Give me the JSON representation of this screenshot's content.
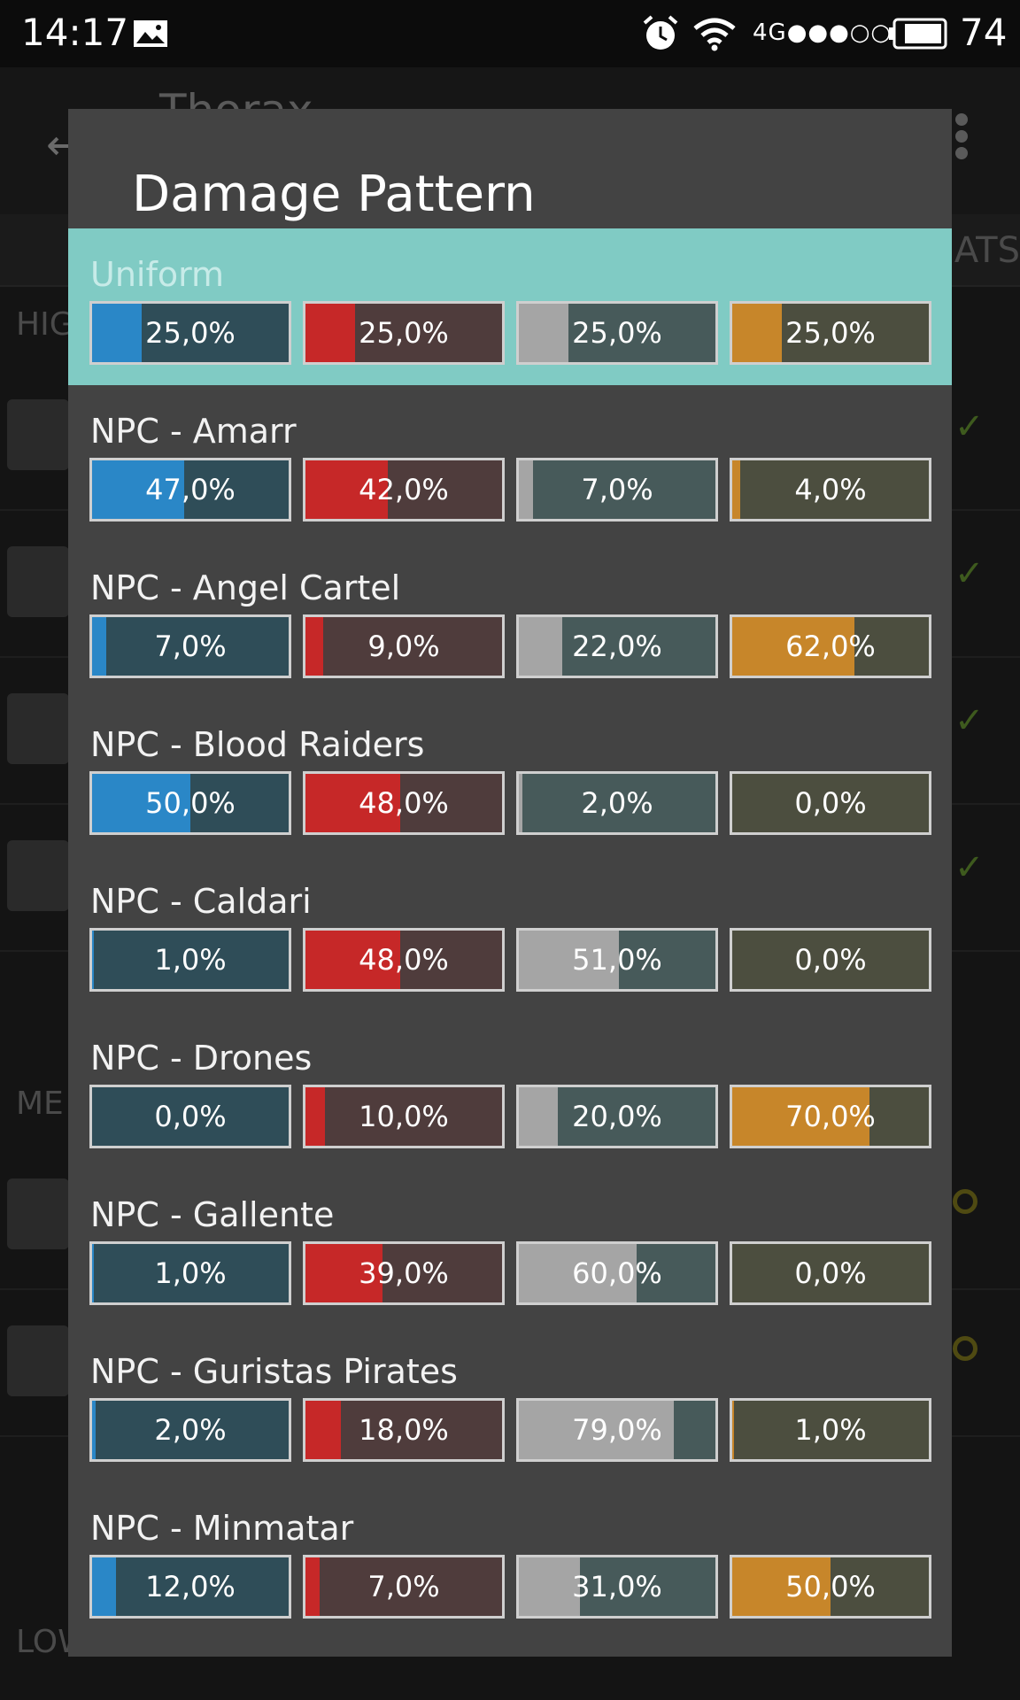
{
  "status_bar": {
    "time": "14:17",
    "network": "4G●●●○○",
    "battery": "74",
    "icons": [
      "image-icon",
      "alarm-icon",
      "wifi-icon",
      "battery-icon"
    ]
  },
  "background": {
    "title": "Thorax",
    "tab_label": "ATS",
    "sections": [
      "HIG",
      "ME",
      "LOW"
    ]
  },
  "dialog": {
    "title": "Damage Pattern",
    "patterns": [
      {
        "name": "Uniform",
        "selected": true,
        "em": {
          "pct": 25.0,
          "label": "25,0%"
        },
        "thermal": {
          "pct": 25.0,
          "label": "25,0%"
        },
        "kinetic": {
          "pct": 25.0,
          "label": "25,0%"
        },
        "explosive": {
          "pct": 25.0,
          "label": "25,0%"
        }
      },
      {
        "name": "NPC - Amarr",
        "selected": false,
        "em": {
          "pct": 47.0,
          "label": "47,0%"
        },
        "thermal": {
          "pct": 42.0,
          "label": "42,0%"
        },
        "kinetic": {
          "pct": 7.0,
          "label": "7,0%"
        },
        "explosive": {
          "pct": 4.0,
          "label": "4,0%"
        }
      },
      {
        "name": "NPC - Angel Cartel",
        "selected": false,
        "em": {
          "pct": 7.0,
          "label": "7,0%"
        },
        "thermal": {
          "pct": 9.0,
          "label": "9,0%"
        },
        "kinetic": {
          "pct": 22.0,
          "label": "22,0%"
        },
        "explosive": {
          "pct": 62.0,
          "label": "62,0%"
        }
      },
      {
        "name": "NPC - Blood Raiders",
        "selected": false,
        "em": {
          "pct": 50.0,
          "label": "50,0%"
        },
        "thermal": {
          "pct": 48.0,
          "label": "48,0%"
        },
        "kinetic": {
          "pct": 2.0,
          "label": "2,0%"
        },
        "explosive": {
          "pct": 0.0,
          "label": "0,0%"
        }
      },
      {
        "name": "NPC - Caldari",
        "selected": false,
        "em": {
          "pct": 1.0,
          "label": "1,0%"
        },
        "thermal": {
          "pct": 48.0,
          "label": "48,0%"
        },
        "kinetic": {
          "pct": 51.0,
          "label": "51,0%"
        },
        "explosive": {
          "pct": 0.0,
          "label": "0,0%"
        }
      },
      {
        "name": "NPC - Drones",
        "selected": false,
        "em": {
          "pct": 0.0,
          "label": "0,0%"
        },
        "thermal": {
          "pct": 10.0,
          "label": "10,0%"
        },
        "kinetic": {
          "pct": 20.0,
          "label": "20,0%"
        },
        "explosive": {
          "pct": 70.0,
          "label": "70,0%"
        }
      },
      {
        "name": "NPC - Gallente",
        "selected": false,
        "em": {
          "pct": 1.0,
          "label": "1,0%"
        },
        "thermal": {
          "pct": 39.0,
          "label": "39,0%"
        },
        "kinetic": {
          "pct": 60.0,
          "label": "60,0%"
        },
        "explosive": {
          "pct": 0.0,
          "label": "0,0%"
        }
      },
      {
        "name": "NPC - Guristas Pirates",
        "selected": false,
        "em": {
          "pct": 2.0,
          "label": "2,0%"
        },
        "thermal": {
          "pct": 18.0,
          "label": "18,0%"
        },
        "kinetic": {
          "pct": 79.0,
          "label": "79,0%"
        },
        "explosive": {
          "pct": 1.0,
          "label": "1,0%"
        }
      },
      {
        "name": "NPC - Minmatar",
        "selected": false,
        "em": {
          "pct": 12.0,
          "label": "12,0%"
        },
        "thermal": {
          "pct": 7.0,
          "label": "7,0%"
        },
        "kinetic": {
          "pct": 31.0,
          "label": "31,0%"
        },
        "explosive": {
          "pct": 50.0,
          "label": "50,0%"
        }
      }
    ]
  },
  "colors": {
    "em": "#2a87c7",
    "thermal": "#c62828",
    "kinetic": "#a5a5a5",
    "explosive": "#c7862a",
    "selected_row": "#80cbc4",
    "dialog_bg": "#434343"
  }
}
